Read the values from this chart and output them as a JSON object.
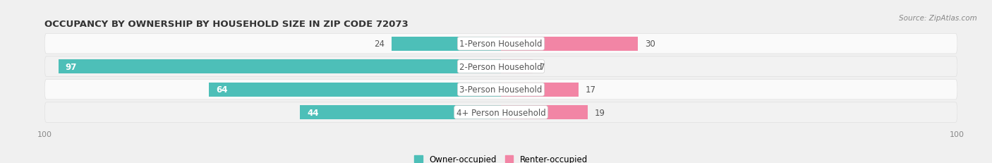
{
  "title": "OCCUPANCY BY OWNERSHIP BY HOUSEHOLD SIZE IN ZIP CODE 72073",
  "source": "Source: ZipAtlas.com",
  "categories": [
    "1-Person Household",
    "2-Person Household",
    "3-Person Household",
    "4+ Person Household"
  ],
  "owner_values": [
    24,
    97,
    64,
    44
  ],
  "renter_values": [
    30,
    7,
    17,
    19
  ],
  "owner_color": "#4dbfb8",
  "renter_color": "#f285a5",
  "renter_color_light": "#f5b8ca",
  "axis_max": 100,
  "bar_height": 0.62,
  "bg_color": "#f0f0f0",
  "row_bg_color": "#f8f8f8",
  "row_border_color": "#e0e0e0",
  "label_fontsize": 8.5,
  "title_fontsize": 9.5,
  "source_fontsize": 7.5,
  "axis_label_fontsize": 8
}
